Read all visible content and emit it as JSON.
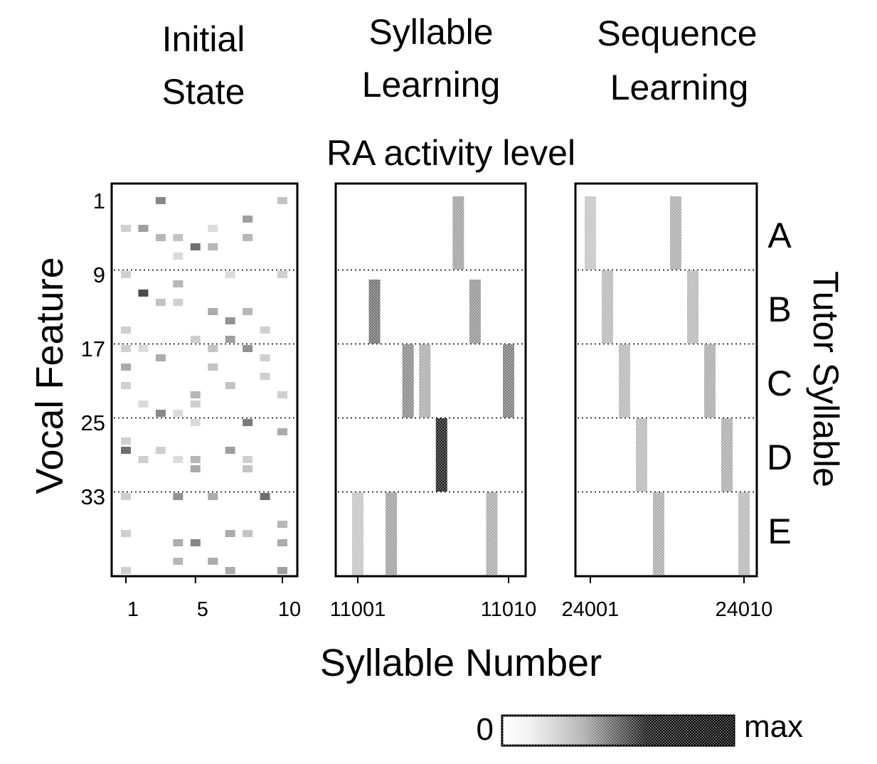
{
  "chart_data": [
    {
      "type": "heatmap",
      "title_line1": "Initial",
      "title_line2": "State",
      "x_ticks": [
        "1",
        "5",
        "10"
      ],
      "x_range": [
        1,
        10
      ],
      "y_range": [
        1,
        40
      ],
      "cells": [
        [
          3,
          1,
          0.5
        ],
        [
          10,
          1,
          0.25
        ],
        [
          8,
          3,
          0.4
        ],
        [
          2,
          4,
          0.4
        ],
        [
          1,
          4,
          0.2
        ],
        [
          6,
          4,
          0.15
        ],
        [
          3,
          5,
          0.3
        ],
        [
          4,
          5,
          0.25
        ],
        [
          8,
          5,
          0.3
        ],
        [
          5,
          6,
          0.6
        ],
        [
          6,
          6,
          0.3
        ],
        [
          4,
          7,
          0.15
        ],
        [
          1,
          9,
          0.2
        ],
        [
          10,
          9,
          0.2
        ],
        [
          7,
          9,
          0.15
        ],
        [
          4,
          10,
          0.3
        ],
        [
          2,
          11,
          0.75
        ],
        [
          3,
          12,
          0.25
        ],
        [
          4,
          12,
          0.2
        ],
        [
          6,
          13,
          0.35
        ],
        [
          8,
          13,
          0.3
        ],
        [
          7,
          14,
          0.45
        ],
        [
          1,
          15,
          0.2
        ],
        [
          9,
          15,
          0.2
        ],
        [
          5,
          16,
          0.2
        ],
        [
          7,
          16,
          0.4
        ],
        [
          1,
          17,
          0.2
        ],
        [
          2,
          17,
          0.15
        ],
        [
          6,
          17,
          0.25
        ],
        [
          8,
          17,
          0.45
        ],
        [
          3,
          18,
          0.35
        ],
        [
          9,
          18,
          0.2
        ],
        [
          1,
          19,
          0.35
        ],
        [
          6,
          19,
          0.25
        ],
        [
          9,
          20,
          0.2
        ],
        [
          1,
          21,
          0.2
        ],
        [
          7,
          21,
          0.25
        ],
        [
          5,
          22,
          0.3
        ],
        [
          10,
          22,
          0.2
        ],
        [
          2,
          23,
          0.15
        ],
        [
          5,
          23,
          0.2
        ],
        [
          3,
          24,
          0.5
        ],
        [
          4,
          24,
          0.15
        ],
        [
          5,
          25,
          0.15
        ],
        [
          8,
          25,
          0.55
        ],
        [
          1,
          27,
          0.2
        ],
        [
          10,
          26,
          0.35
        ],
        [
          1,
          28,
          0.6
        ],
        [
          3,
          28,
          0.2
        ],
        [
          7,
          28,
          0.4
        ],
        [
          2,
          29,
          0.2
        ],
        [
          5,
          29,
          0.3
        ],
        [
          4,
          29,
          0.15
        ],
        [
          8,
          29,
          0.2
        ],
        [
          5,
          30,
          0.35
        ],
        [
          8,
          30,
          0.25
        ],
        [
          4,
          33,
          0.45
        ],
        [
          6,
          33,
          0.35
        ],
        [
          9,
          33,
          0.6
        ],
        [
          1,
          33,
          0.2
        ],
        [
          10,
          36,
          0.3
        ],
        [
          10,
          38,
          0.35
        ],
        [
          1,
          37,
          0.2
        ],
        [
          4,
          38,
          0.35
        ],
        [
          5,
          38,
          0.5
        ],
        [
          7,
          37,
          0.35
        ],
        [
          8,
          37,
          0.25
        ],
        [
          4,
          40,
          0.3
        ],
        [
          6,
          40,
          0.35
        ],
        [
          7,
          41,
          0.35
        ],
        [
          10,
          41,
          0.4
        ],
        [
          1,
          41,
          0.2
        ]
      ]
    },
    {
      "type": "heatmap",
      "title_line1": "Syllable",
      "title_line2": "Learning",
      "x_ticks": [
        "11001",
        "11010"
      ],
      "x_range": [
        11001,
        11010
      ],
      "y_range": [
        1,
        40
      ],
      "blocks": [
        {
          "x": 11007,
          "y0": 1,
          "y1": 8,
          "level": 0.4
        },
        {
          "x": 11008,
          "y0": 10,
          "y1": 16,
          "level": 0.45
        },
        {
          "x": 11002,
          "y0": 10,
          "y1": 16,
          "level": 0.6
        },
        {
          "x": 11004,
          "y0": 17,
          "y1": 24,
          "level": 0.5
        },
        {
          "x": 11005,
          "y0": 17,
          "y1": 24,
          "level": 0.35
        },
        {
          "x": 11010,
          "y0": 17,
          "y1": 24,
          "level": 0.55
        },
        {
          "x": 11006,
          "y0": 25,
          "y1": 32,
          "level": 0.95
        },
        {
          "x": 11001,
          "y0": 33,
          "y1": 41,
          "level": 0.25
        },
        {
          "x": 11003,
          "y0": 33,
          "y1": 41,
          "level": 0.4
        },
        {
          "x": 11009,
          "y0": 33,
          "y1": 41,
          "level": 0.35
        }
      ]
    },
    {
      "type": "heatmap",
      "title_line1": "Sequence",
      "title_line2": "Learning",
      "x_ticks": [
        "24001",
        "24010"
      ],
      "x_range": [
        24001,
        24010
      ],
      "y_range": [
        1,
        40
      ],
      "blocks": [
        {
          "x": 24001,
          "y0": 1,
          "y1": 8,
          "level": 0.25
        },
        {
          "x": 24006,
          "y0": 1,
          "y1": 8,
          "level": 0.35
        },
        {
          "x": 24002,
          "y0": 9,
          "y1": 16,
          "level": 0.3
        },
        {
          "x": 24007,
          "y0": 9,
          "y1": 16,
          "level": 0.3
        },
        {
          "x": 24003,
          "y0": 17,
          "y1": 24,
          "level": 0.3
        },
        {
          "x": 24008,
          "y0": 17,
          "y1": 24,
          "level": 0.35
        },
        {
          "x": 24004,
          "y0": 25,
          "y1": 32,
          "level": 0.3
        },
        {
          "x": 24009,
          "y0": 25,
          "y1": 32,
          "level": 0.35
        },
        {
          "x": 24005,
          "y0": 33,
          "y1": 41,
          "level": 0.35
        },
        {
          "x": 24010,
          "y0": 33,
          "y1": 41,
          "level": 0.3
        }
      ]
    }
  ],
  "center_title": "RA activity level",
  "y_axis_label": "Vocal Feature",
  "y_ticks": [
    "1",
    "9",
    "17",
    "25",
    "33"
  ],
  "row_group_labels": [
    "A",
    "B",
    "C",
    "D",
    "E"
  ],
  "right_axis_label": "Tutor Syllable",
  "x_axis_label": "Syllable Number",
  "colorbar": {
    "min_label": "0",
    "max_label": "max"
  },
  "colors": {
    "ink": "#000000",
    "background": "#ffffff",
    "separator": "#000000"
  }
}
